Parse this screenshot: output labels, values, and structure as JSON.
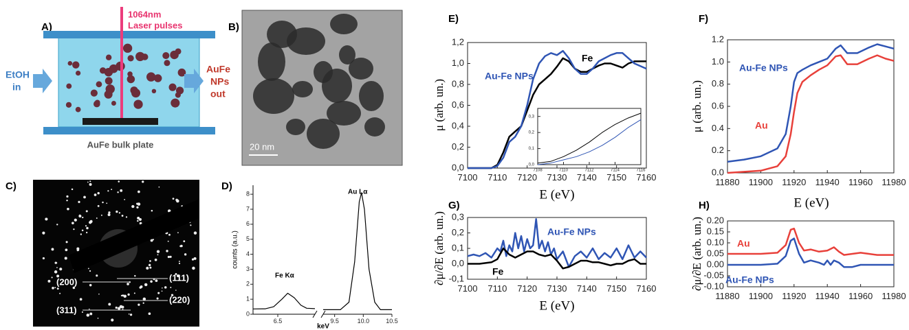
{
  "panels": {
    "a": {
      "label": "A)",
      "laser": [
        "1064nm",
        "Laser pulses"
      ],
      "inlet": [
        "EtOH",
        "in"
      ],
      "outlet": [
        "AuFe",
        "NPs",
        "out"
      ],
      "plate": "AuFe bulk plate"
    },
    "b": {
      "label": "B)",
      "scale_bar": "20 nm"
    },
    "c": {
      "label": "C)",
      "rings": [
        "(200)",
        "(111)",
        "(311)",
        "(220)"
      ]
    }
  },
  "chart_data": [
    {
      "type": "line",
      "label": "D)",
      "ylabel": "counts (a.u.)",
      "xlabel": "keV",
      "xlim": [
        6.2,
        10.5
      ],
      "xbreak": [
        6.95,
        9.3
      ],
      "ylim": [
        0,
        8.6
      ],
      "xticks": [
        6.5,
        9.5,
        {
          "value": 10,
          "label": "10.0"
        },
        10.5
      ],
      "yticks": [
        0,
        1,
        2,
        3,
        4,
        5,
        6,
        7,
        8
      ],
      "annotations": [
        "Fe Kα",
        "Au Lα"
      ],
      "series": [
        {
          "color": "#000000",
          "x": [
            6.2,
            6.35,
            6.45,
            6.55,
            6.62,
            6.7,
            6.78,
            6.85,
            6.95
          ],
          "values": [
            0.35,
            0.36,
            0.5,
            1.0,
            1.4,
            1.1,
            0.6,
            0.4,
            0.37
          ]
        },
        {
          "color": "#000000",
          "x": [
            9.3,
            9.6,
            9.75,
            9.85,
            9.93,
            9.97,
            10.02,
            10.1,
            10.2,
            10.3,
            10.5
          ],
          "values": [
            0.3,
            0.3,
            0.8,
            3.5,
            7.5,
            8.1,
            7.0,
            3.0,
            0.8,
            0.3,
            0.3
          ]
        }
      ]
    },
    {
      "type": "line",
      "label": "E)",
      "ylabel": "μ (arb. un.)",
      "xlabel": "E (eV)",
      "xlim": [
        7100,
        7160
      ],
      "ylim": [
        0,
        1.2
      ],
      "xticks": [
        7100,
        7110,
        7120,
        7130,
        7140,
        7150,
        7160
      ],
      "yticks": [
        {
          "value": 0,
          "label": "0,0"
        },
        {
          "value": 0.2,
          "label": "0,2"
        },
        {
          "value": 0.4,
          "label": "0,4"
        },
        {
          "value": 0.6,
          "label": "0,6"
        },
        {
          "value": 0.8,
          "label": "0,8"
        },
        {
          "value": 1,
          "label": "1,0"
        },
        {
          "value": 1.2,
          "label": "1,2"
        }
      ],
      "series": [
        {
          "name": "Fe",
          "color": "#000000",
          "x": [
            7100,
            7108,
            7110,
            7112,
            7114,
            7116,
            7118,
            7120,
            7122,
            7124,
            7126,
            7128,
            7130,
            7132,
            7134,
            7136,
            7138,
            7140,
            7142,
            7144,
            7146,
            7148,
            7150,
            7152,
            7154,
            7156,
            7160
          ],
          "values": [
            0,
            0,
            0.03,
            0.15,
            0.3,
            0.35,
            0.4,
            0.55,
            0.7,
            0.8,
            0.85,
            0.9,
            0.97,
            1.05,
            1.02,
            0.95,
            0.92,
            0.92,
            0.95,
            0.98,
            1.0,
            1.0,
            0.98,
            0.96,
            1.0,
            1.02,
            1.02
          ]
        },
        {
          "name": "Au-Fe NPs",
          "color": "#2f55b4",
          "x": [
            7100,
            7108,
            7110,
            7112,
            7114,
            7116,
            7118,
            7120,
            7122,
            7124,
            7126,
            7128,
            7130,
            7132,
            7134,
            7136,
            7138,
            7140,
            7142,
            7144,
            7146,
            7148,
            7150,
            7152,
            7154,
            7156,
            7160
          ],
          "values": [
            0,
            0,
            0.02,
            0.1,
            0.25,
            0.3,
            0.4,
            0.6,
            0.85,
            1.0,
            1.07,
            1.1,
            1.08,
            1.12,
            1.05,
            0.95,
            0.9,
            0.9,
            0.95,
            1.02,
            1.05,
            1.08,
            1.1,
            1.1,
            1.05,
            1.0,
            0.95
          ]
        }
      ],
      "inset": {
        "type": "line",
        "xlim": [
          7108,
          7116
        ],
        "ylim": [
          0,
          0.35
        ],
        "xticks": [
          7108,
          7110,
          7112,
          7114,
          7116
        ],
        "yticks": [
          {
            "value": 0,
            "label": "0,0"
          },
          {
            "value": 0.1,
            "label": "0,1"
          },
          {
            "value": 0.2,
            "label": "0,2"
          },
          {
            "value": 0.3,
            "label": "0,3"
          }
        ],
        "series": [
          {
            "color": "#000000",
            "x": [
              7108,
              7109,
              7110,
              7111,
              7112,
              7113,
              7114,
              7115,
              7116
            ],
            "values": [
              0.01,
              0.02,
              0.05,
              0.09,
              0.14,
              0.2,
              0.25,
              0.29,
              0.32
            ]
          },
          {
            "color": "#2f55b4",
            "x": [
              7108,
              7109,
              7110,
              7111,
              7112,
              7113,
              7114,
              7115,
              7116
            ],
            "values": [
              0,
              0.01,
              0.03,
              0.05,
              0.08,
              0.12,
              0.17,
              0.23,
              0.28
            ]
          }
        ]
      }
    },
    {
      "type": "line",
      "label": "F)",
      "ylabel": "μ (arb. un.)",
      "xlabel": "E (eV)",
      "xlim": [
        11880,
        11980
      ],
      "ylim": [
        0,
        1.2
      ],
      "xticks": [
        11880,
        11900,
        11920,
        11940,
        11960,
        11980
      ],
      "yticks": [
        {
          "value": 0,
          "label": "0.0"
        },
        0.2,
        0.4,
        0.6,
        0.8,
        {
          "value": 1,
          "label": "1.0"
        },
        1.2
      ],
      "series": [
        {
          "name": "Au-Fe NPs",
          "color": "#2f55b4",
          "x": [
            11880,
            11890,
            11900,
            11910,
            11915,
            11918,
            11920,
            11922,
            11925,
            11930,
            11935,
            11940,
            11945,
            11948,
            11952,
            11958,
            11965,
            11970,
            11975,
            11980
          ],
          "values": [
            0.1,
            0.12,
            0.15,
            0.22,
            0.35,
            0.6,
            0.82,
            0.9,
            0.93,
            0.97,
            1.0,
            1.03,
            1.12,
            1.15,
            1.08,
            1.08,
            1.13,
            1.16,
            1.14,
            1.12
          ]
        },
        {
          "name": "Au",
          "color": "#e8403a",
          "x": [
            11880,
            11890,
            11900,
            11910,
            11915,
            11918,
            11920,
            11922,
            11925,
            11930,
            11935,
            11940,
            11945,
            11948,
            11952,
            11958,
            11965,
            11970,
            11975,
            11980
          ],
          "values": [
            0,
            0.01,
            0.02,
            0.06,
            0.15,
            0.35,
            0.55,
            0.72,
            0.82,
            0.88,
            0.93,
            0.97,
            1.05,
            1.06,
            0.98,
            0.98,
            1.03,
            1.06,
            1.03,
            1.01
          ]
        }
      ]
    },
    {
      "type": "line",
      "label": "G)",
      "ylabel": "∂μ/∂E (arb. un.)",
      "xlabel": "E (eV)",
      "xlim": [
        7100,
        7160
      ],
      "ylim": [
        -0.1,
        0.3
      ],
      "xticks": [
        7100,
        7110,
        7120,
        7130,
        7140,
        7150,
        7160
      ],
      "yticks": [
        {
          "value": -0.1,
          "label": "-0,1"
        },
        {
          "value": 0,
          "label": "0,0"
        },
        {
          "value": 0.1,
          "label": "0,1"
        },
        {
          "value": 0.2,
          "label": "0,2"
        },
        {
          "value": 0.3,
          "label": "0,3"
        }
      ],
      "series": [
        {
          "name": "Au-Fe NPs",
          "color": "#2f55b4",
          "x": [
            7100,
            7102,
            7104,
            7106,
            7108,
            7110,
            7111,
            7112,
            7113,
            7114,
            7115,
            7116,
            7117,
            7118,
            7119,
            7120,
            7121,
            7122,
            7123,
            7124,
            7125,
            7126,
            7127,
            7128,
            7129,
            7130,
            7132,
            7134,
            7136,
            7138,
            7140,
            7142,
            7144,
            7146,
            7148,
            7150,
            7152,
            7154,
            7156,
            7158,
            7160
          ],
          "values": [
            0.05,
            0.06,
            0.05,
            0.07,
            0.04,
            0.1,
            0.08,
            0.15,
            0.05,
            0.12,
            0.08,
            0.2,
            0.1,
            0.18,
            0.08,
            0.16,
            0.1,
            0.12,
            0.29,
            0.1,
            0.15,
            0.08,
            0.14,
            0.06,
            0.1,
            0.03,
            0.08,
            -0.02,
            0.05,
            0.08,
            0.04,
            0.1,
            0.03,
            0.07,
            0.04,
            0.1,
            0.03,
            0.12,
            0.04,
            0.08,
            0.04
          ]
        },
        {
          "name": "Fe",
          "color": "#000000",
          "x": [
            7100,
            7104,
            7108,
            7110,
            7112,
            7114,
            7116,
            7118,
            7120,
            7122,
            7124,
            7126,
            7128,
            7130,
            7132,
            7134,
            7136,
            7138,
            7140,
            7142,
            7144,
            7146,
            7148,
            7150,
            7152,
            7154,
            7156,
            7158,
            7160
          ],
          "values": [
            0,
            0,
            0.01,
            0.03,
            0.1,
            0.06,
            0.04,
            0.06,
            0.08,
            0.08,
            0.06,
            0.05,
            0.06,
            0.02,
            -0.03,
            -0.02,
            0,
            0.02,
            0.02,
            0.01,
            0.01,
            0,
            -0.01,
            0,
            0,
            0.02,
            0.03,
            0,
            0
          ]
        }
      ]
    },
    {
      "type": "line",
      "label": "H)",
      "ylabel": "∂μ/∂E (arb. un.)",
      "xlim": [
        11880,
        11980
      ],
      "ylim": [
        -0.1,
        0.2
      ],
      "xticks": [
        11880,
        11900,
        11920,
        11940,
        11960,
        11980
      ],
      "yticks": [
        {
          "value": -0.1,
          "label": "-0.10"
        },
        {
          "value": -0.05,
          "label": "-0.05"
        },
        {
          "value": 0,
          "label": "0.00"
        },
        0.05,
        {
          "value": 0.1,
          "label": "0.10"
        },
        0.15,
        {
          "value": 0.2,
          "label": "0.20"
        }
      ],
      "series": [
        {
          "name": "Au",
          "color": "#e8403a",
          "x": [
            11880,
            11900,
            11910,
            11915,
            11918,
            11920,
            11923,
            11926,
            11930,
            11935,
            11940,
            11944,
            11947,
            11950,
            11955,
            11960,
            11965,
            11970,
            11980
          ],
          "values": [
            0.05,
            0.05,
            0.055,
            0.09,
            0.16,
            0.165,
            0.1,
            0.065,
            0.07,
            0.06,
            0.065,
            0.08,
            0.06,
            0.045,
            0.05,
            0.055,
            0.05,
            0.045,
            0.045
          ]
        },
        {
          "name": "Au-Fe NPs",
          "color": "#2f55b4",
          "x": [
            11880,
            11900,
            11910,
            11915,
            11918,
            11920,
            11923,
            11926,
            11930,
            11935,
            11938,
            11940,
            11942,
            11944,
            11947,
            11950,
            11955,
            11960,
            11965,
            11970,
            11980
          ],
          "values": [
            0,
            0,
            0.005,
            0.04,
            0.11,
            0.12,
            0.05,
            0.01,
            0.02,
            0.01,
            0,
            0.02,
            0,
            0.02,
            0.01,
            -0.01,
            -0.01,
            0,
            0,
            0,
            0
          ]
        }
      ]
    }
  ]
}
